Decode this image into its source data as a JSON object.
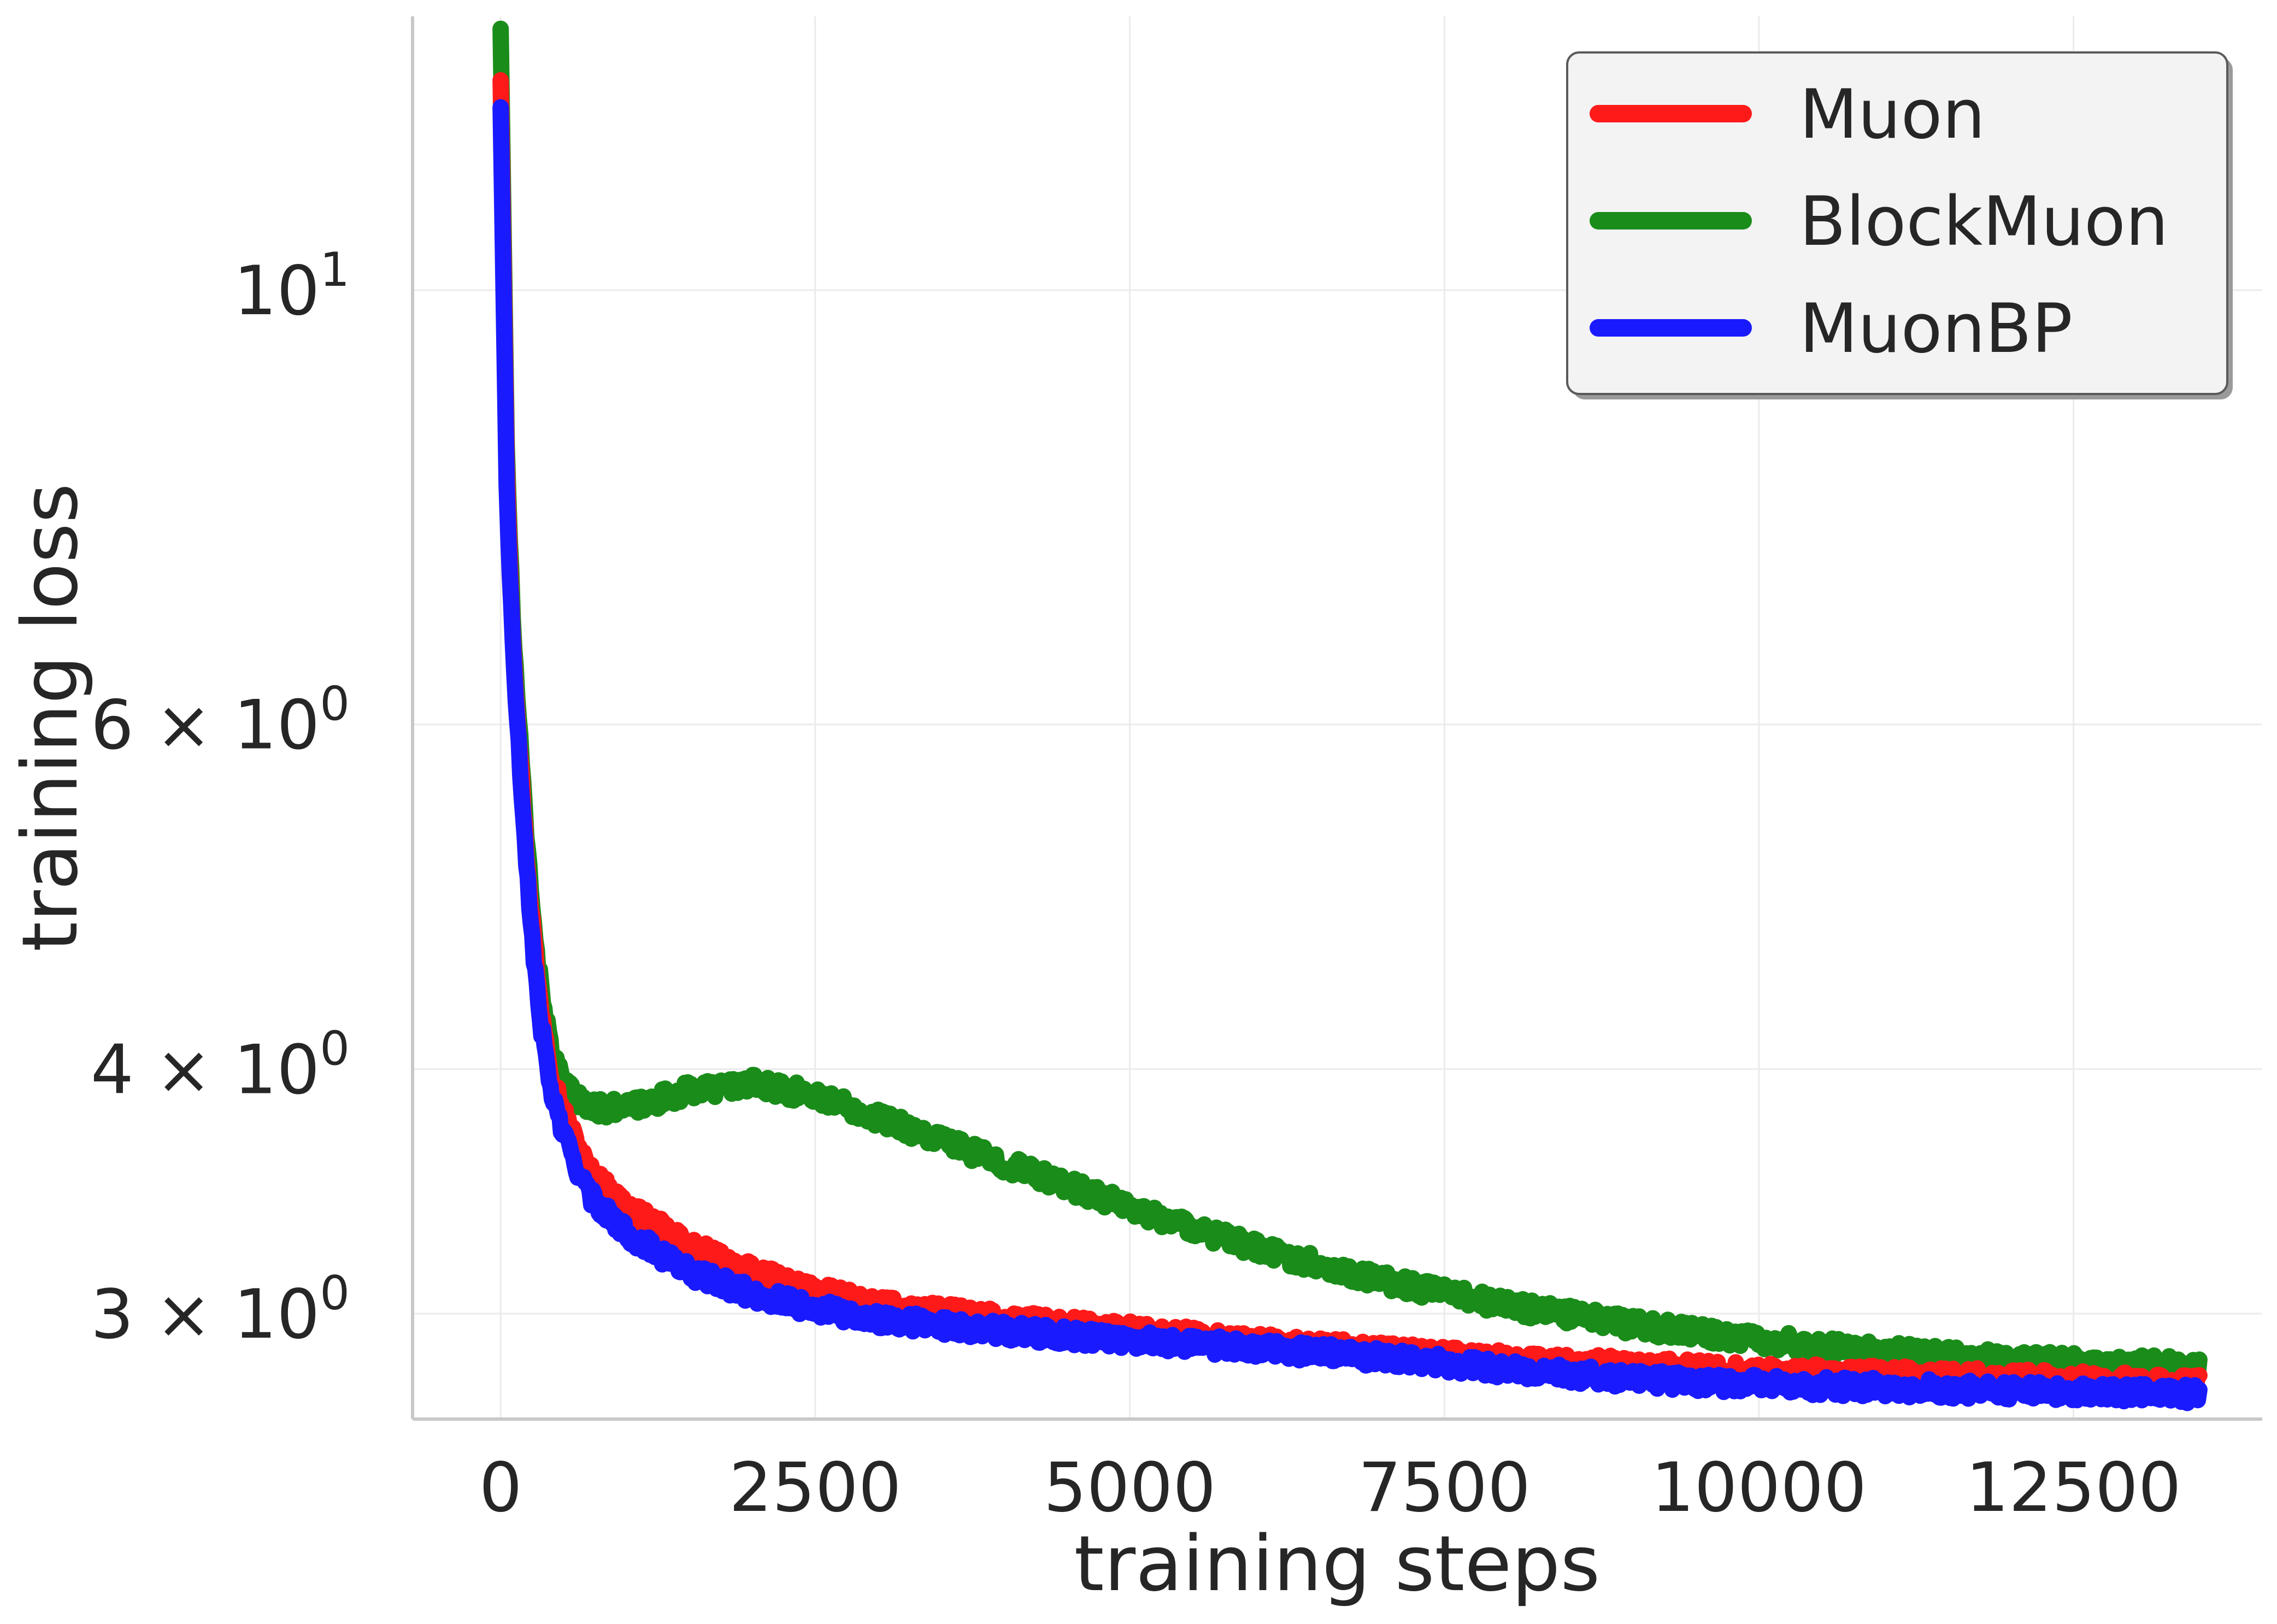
{
  "chart_data": {
    "type": "line",
    "xlabel": "training steps",
    "ylabel": "training loss",
    "x_scale": "linear",
    "y_scale": "log",
    "xlim": [
      -700,
      14000
    ],
    "ylim": [
      2.65,
      13.8
    ],
    "grid": true,
    "legend_position": "top-right",
    "x_ticks": [
      {
        "value": 0,
        "label": "0"
      },
      {
        "value": 2500,
        "label": "2500"
      },
      {
        "value": 5000,
        "label": "5000"
      },
      {
        "value": 7500,
        "label": "7500"
      },
      {
        "value": 10000,
        "label": "10000"
      },
      {
        "value": 12500,
        "label": "12500"
      }
    ],
    "y_ticks": [
      {
        "value": 3,
        "base": "3 × 10",
        "exp": "0"
      },
      {
        "value": 4,
        "base": "4 × 10",
        "exp": "0"
      },
      {
        "value": 6,
        "base": "6 × 10",
        "exp": "0"
      },
      {
        "value": 10,
        "base": "10",
        "exp": "1"
      }
    ],
    "series": [
      {
        "name": "Muon",
        "color": "#ff1a1a",
        "x": [
          0,
          50,
          100,
          200,
          300,
          400,
          500,
          700,
          1000,
          1500,
          2000,
          2500,
          3000,
          4000,
          5000,
          6000,
          7000,
          8000,
          9000,
          10000,
          11000,
          12000,
          13500
        ],
        "y": [
          12.8,
          8.0,
          6.6,
          5.2,
          4.4,
          4.0,
          3.8,
          3.55,
          3.4,
          3.25,
          3.15,
          3.08,
          3.03,
          2.98,
          2.94,
          2.9,
          2.87,
          2.84,
          2.82,
          2.8,
          2.79,
          2.78,
          2.76
        ]
      },
      {
        "name": "BlockMuon",
        "color": "#1a8c1a",
        "x": [
          0,
          50,
          100,
          200,
          300,
          400,
          500,
          700,
          1000,
          1500,
          2000,
          2500,
          3000,
          4000,
          5000,
          6000,
          7000,
          8000,
          9000,
          10000,
          11000,
          12000,
          13500
        ],
        "y": [
          13.6,
          8.2,
          6.7,
          5.3,
          4.5,
          4.1,
          3.92,
          3.82,
          3.82,
          3.9,
          3.93,
          3.88,
          3.78,
          3.58,
          3.4,
          3.24,
          3.12,
          3.03,
          2.96,
          2.91,
          2.87,
          2.84,
          2.82
        ]
      },
      {
        "name": "MuonBP",
        "color": "#1a1aff",
        "x": [
          0,
          50,
          100,
          200,
          300,
          400,
          500,
          700,
          1000,
          1500,
          2000,
          2500,
          3000,
          4000,
          5000,
          6000,
          7000,
          8000,
          9000,
          10000,
          11000,
          12000,
          13500
        ],
        "y": [
          12.4,
          7.8,
          6.5,
          5.1,
          4.3,
          3.9,
          3.7,
          3.45,
          3.3,
          3.15,
          3.07,
          3.02,
          2.98,
          2.94,
          2.91,
          2.88,
          2.85,
          2.81,
          2.78,
          2.76,
          2.75,
          2.74,
          2.73
        ]
      }
    ]
  }
}
